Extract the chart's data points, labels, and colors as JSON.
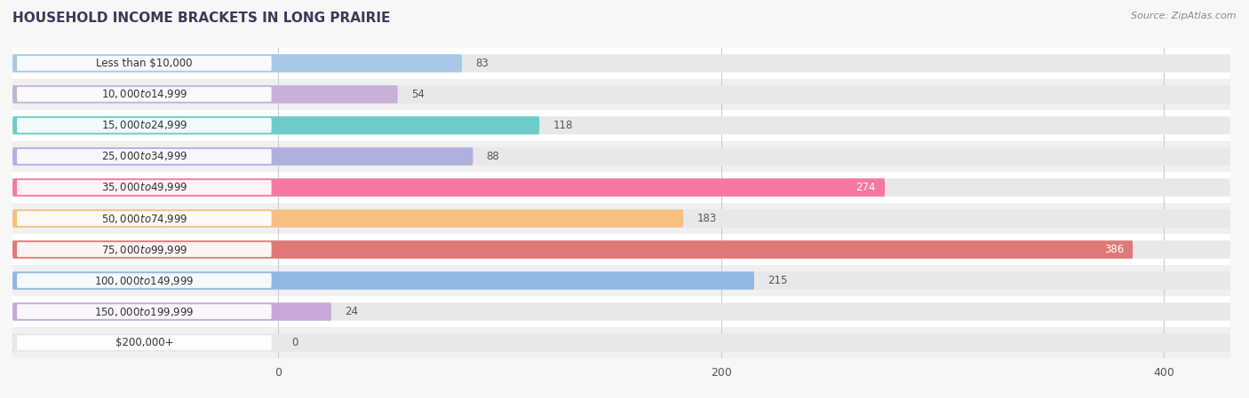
{
  "title": "HOUSEHOLD INCOME BRACKETS IN LONG PRAIRIE",
  "source": "Source: ZipAtlas.com",
  "categories": [
    "Less than $10,000",
    "$10,000 to $14,999",
    "$15,000 to $24,999",
    "$25,000 to $34,999",
    "$35,000 to $49,999",
    "$50,000 to $74,999",
    "$75,000 to $99,999",
    "$100,000 to $149,999",
    "$150,000 to $199,999",
    "$200,000+"
  ],
  "values": [
    83,
    54,
    118,
    88,
    274,
    183,
    386,
    215,
    24,
    0
  ],
  "bar_colors": [
    "#a8c8e8",
    "#c8b0d8",
    "#6eccc8",
    "#b0b0e0",
    "#f478a0",
    "#f5c080",
    "#e07878",
    "#90b8e0",
    "#c8a8d8",
    "#6eccc8"
  ],
  "xlim_left": -120,
  "xlim_right": 430,
  "xticks": [
    0,
    200,
    400
  ],
  "background_color": "#f7f7f7",
  "bar_bg_color": "#e8e8e8",
  "row_alt_color": "#f0f0f0",
  "title_fontsize": 11,
  "label_fontsize": 8.5,
  "value_fontsize": 8.5,
  "bar_height": 0.58,
  "fig_width": 14.06,
  "fig_height": 4.49
}
